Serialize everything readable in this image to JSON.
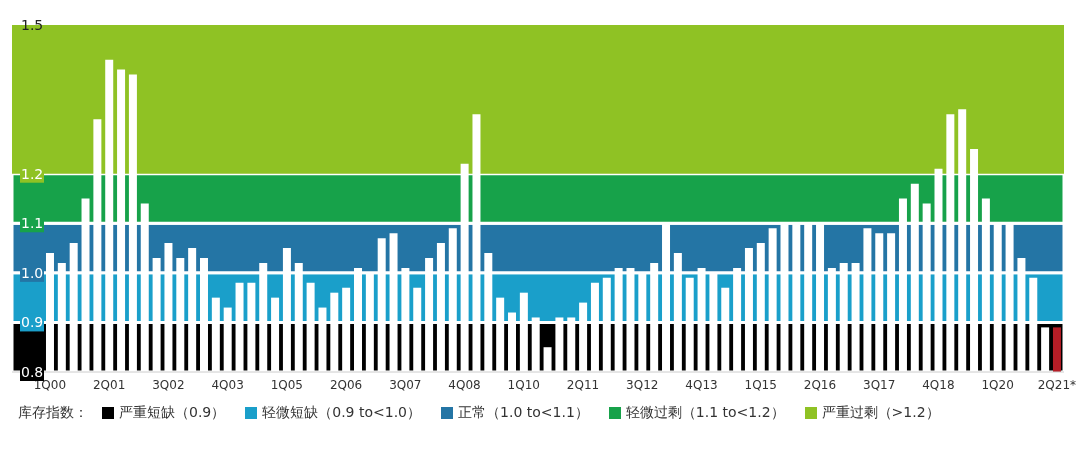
{
  "chart_data": {
    "type": "bar",
    "categories": [
      "1Q00",
      null,
      null,
      null,
      null,
      "2Q01",
      null,
      null,
      null,
      null,
      "3Q02",
      null,
      null,
      null,
      null,
      "4Q03",
      null,
      null,
      null,
      null,
      "1Q05",
      null,
      null,
      null,
      null,
      "2Q06",
      null,
      null,
      null,
      null,
      "3Q07",
      null,
      null,
      null,
      null,
      "4Q08",
      null,
      null,
      null,
      null,
      "1Q10",
      null,
      null,
      null,
      null,
      "2Q11",
      null,
      null,
      null,
      null,
      "3Q12",
      null,
      null,
      null,
      null,
      "4Q13",
      null,
      null,
      null,
      null,
      "1Q15",
      null,
      null,
      null,
      null,
      "2Q16",
      null,
      null,
      null,
      null,
      "3Q17",
      null,
      null,
      null,
      null,
      "4Q18",
      null,
      null,
      null,
      null,
      "1Q20",
      null,
      null,
      null,
      null,
      "2Q21*"
    ],
    "values": [
      1.04,
      1.02,
      1.06,
      1.15,
      1.31,
      1.43,
      1.41,
      1.4,
      1.14,
      1.03,
      1.06,
      1.03,
      1.05,
      1.03,
      0.95,
      0.93,
      0.98,
      0.98,
      1.02,
      0.95,
      1.05,
      1.02,
      0.98,
      0.93,
      0.96,
      0.97,
      1.01,
      1.0,
      1.07,
      1.08,
      1.01,
      0.97,
      1.03,
      1.06,
      1.09,
      1.22,
      1.32,
      1.04,
      0.95,
      0.92,
      0.96,
      0.91,
      0.85,
      0.91,
      0.91,
      0.94,
      0.98,
      0.99,
      1.01,
      1.01,
      1.0,
      1.02,
      1.1,
      1.04,
      0.99,
      1.01,
      1.0,
      0.97,
      1.01,
      1.05,
      1.06,
      1.09,
      1.1,
      1.1,
      1.1,
      1.1,
      1.01,
      1.02,
      1.02,
      1.09,
      1.08,
      1.08,
      1.15,
      1.18,
      1.14,
      1.21,
      1.32,
      1.33,
      1.25,
      1.15,
      1.1,
      1.1,
      1.03,
      0.99,
      0.89,
      0.89
    ],
    "colors": [
      "#ffffff",
      "#ffffff",
      "#ffffff",
      "#ffffff",
      "#ffffff",
      "#ffffff",
      "#ffffff",
      "#ffffff",
      "#ffffff",
      "#ffffff",
      "#ffffff",
      "#ffffff",
      "#ffffff",
      "#ffffff",
      "#ffffff",
      "#ffffff",
      "#ffffff",
      "#ffffff",
      "#ffffff",
      "#ffffff",
      "#ffffff",
      "#ffffff",
      "#ffffff",
      "#ffffff",
      "#ffffff",
      "#ffffff",
      "#ffffff",
      "#ffffff",
      "#ffffff",
      "#ffffff",
      "#ffffff",
      "#ffffff",
      "#ffffff",
      "#ffffff",
      "#ffffff",
      "#ffffff",
      "#ffffff",
      "#ffffff",
      "#ffffff",
      "#ffffff",
      "#ffffff",
      "#ffffff",
      "#ffffff",
      "#ffffff",
      "#ffffff",
      "#ffffff",
      "#ffffff",
      "#ffffff",
      "#ffffff",
      "#ffffff",
      "#ffffff",
      "#ffffff",
      "#ffffff",
      "#ffffff",
      "#ffffff",
      "#ffffff",
      "#ffffff",
      "#ffffff",
      "#ffffff",
      "#ffffff",
      "#ffffff",
      "#ffffff",
      "#ffffff",
      "#ffffff",
      "#ffffff",
      "#ffffff",
      "#ffffff",
      "#ffffff",
      "#ffffff",
      "#ffffff",
      "#ffffff",
      "#ffffff",
      "#ffffff",
      "#ffffff",
      "#ffffff",
      "#ffffff",
      "#ffffff",
      "#ffffff",
      "#ffffff",
      "#ffffff",
      "#ffffff",
      "#ffffff",
      "#ffffff",
      "#ffffff",
      "#ffffff",
      "#b51d26"
    ],
    "ylim": [
      0.8,
      1.5
    ],
    "yticks": [
      0.8,
      0.9,
      {
        "value": 1,
        "label": "1.0"
      },
      1.1,
      1.2,
      1.5
    ],
    "legend_title": "库存指数：",
    "legend": "bottom",
    "bands": [
      {
        "axis": "y",
        "from": 0.8,
        "to": 0.9,
        "label": "严重短缺（0.9）",
        "color": "#000000"
      },
      {
        "axis": "y",
        "from": 0.9,
        "to": 1.0,
        "label": "轻微短缺（0.9 to<1.0）",
        "color": "#1a9fca"
      },
      {
        "axis": "y",
        "from": 1.0,
        "to": 1.1,
        "label": "正常（1.0 to<1.1）",
        "color": "#2475a5"
      },
      {
        "axis": "y",
        "from": 1.1,
        "to": 1.2,
        "label": "轻微过剩（1.1 to<1.2）",
        "color": "#17a24a"
      },
      {
        "axis": "y",
        "from": 1.2,
        "to": 1.5,
        "label": "严重过剩（>1.2）",
        "color": "#8fc224"
      }
    ]
  }
}
